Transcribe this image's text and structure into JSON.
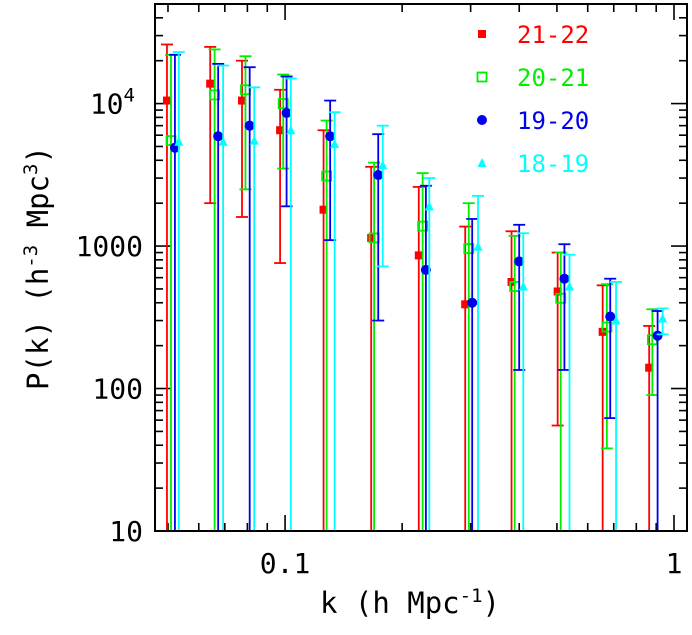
{
  "chart_data": {
    "type": "scatter",
    "xlabel": "k (h Mpc",
    "xlabel_sup": "-1",
    "xlabel_close": ")",
    "ylabel": "P(k) (h",
    "ylabel_sup1": "-3",
    "ylabel_mid": " Mpc",
    "ylabel_sup2": "3",
    "ylabel_close": ")",
    "x_scale": "log",
    "y_scale": "log",
    "xlim": [
      0.0463,
      1.08
    ],
    "ylim": [
      10,
      50000
    ],
    "x_ticks": [
      {
        "value": 0.1,
        "label": "0.1"
      },
      {
        "value": 1,
        "label": "1"
      }
    ],
    "y_ticks": [
      {
        "value": 10,
        "label": "10",
        "sup": ""
      },
      {
        "value": 100,
        "label": "100",
        "sup": ""
      },
      {
        "value": 1000,
        "label": "1000",
        "sup": ""
      },
      {
        "value": 10000,
        "label": "10",
        "sup": "4"
      }
    ],
    "legend_position": "top-right",
    "series": [
      {
        "name": "21-22",
        "color": "#ff0000",
        "marker": "filled-square",
        "points": [
          {
            "k": 0.0497,
            "p": 10500,
            "lo": 10,
            "hi": 26000
          },
          {
            "k": 0.0642,
            "p": 13800,
            "lo": 2000,
            "hi": 25000
          },
          {
            "k": 0.0775,
            "p": 10500,
            "lo": 1600,
            "hi": 20000
          },
          {
            "k": 0.0971,
            "p": 6500,
            "lo": 760,
            "hi": 12500
          },
          {
            "k": 0.1256,
            "p": 1800,
            "lo": 10,
            "hi": 6500
          },
          {
            "k": 0.1665,
            "p": 1140,
            "lo": 10,
            "hi": 3600
          },
          {
            "k": 0.2207,
            "p": 860,
            "lo": 10,
            "hi": 2600
          },
          {
            "k": 0.2905,
            "p": 390,
            "lo": 10,
            "hi": 1370
          },
          {
            "k": 0.3822,
            "p": 560,
            "lo": 10,
            "hi": 1270
          },
          {
            "k": 0.5022,
            "p": 480,
            "lo": 55,
            "hi": 900
          },
          {
            "k": 0.6555,
            "p": 250,
            "lo": 10,
            "hi": 530
          },
          {
            "k": 0.8633,
            "p": 140,
            "lo": 10,
            "hi": 275
          }
        ]
      },
      {
        "name": "20-21",
        "color": "#00ee00",
        "marker": "open-square",
        "points": [
          {
            "k": 0.0509,
            "p": 5500,
            "lo": 10,
            "hi": 22000
          },
          {
            "k": 0.0659,
            "p": 11500,
            "lo": 10,
            "hi": 24000
          },
          {
            "k": 0.0791,
            "p": 12500,
            "lo": 2500,
            "hi": 21500
          },
          {
            "k": 0.0989,
            "p": 10000,
            "lo": 3500,
            "hi": 16000
          },
          {
            "k": 0.1279,
            "p": 3100,
            "lo": 10,
            "hi": 7600
          },
          {
            "k": 0.1694,
            "p": 1140,
            "lo": 10,
            "hi": 3850
          },
          {
            "k": 0.2258,
            "p": 1380,
            "lo": 10,
            "hi": 3250
          },
          {
            "k": 0.2967,
            "p": 960,
            "lo": 10,
            "hi": 2000
          },
          {
            "k": 0.3893,
            "p": 520,
            "lo": 10,
            "hi": 1180
          },
          {
            "k": 0.5114,
            "p": 430,
            "lo": 10,
            "hi": 900
          },
          {
            "k": 0.6721,
            "p": 270,
            "lo": 38,
            "hi": 540
          },
          {
            "k": 0.8797,
            "p": 220,
            "lo": 90,
            "hi": 360
          }
        ]
      },
      {
        "name": "19-20",
        "color": "#0000ee",
        "marker": "filled-circle",
        "points": [
          {
            "k": 0.0521,
            "p": 4900,
            "lo": 10,
            "hi": 22000
          },
          {
            "k": 0.0673,
            "p": 5900,
            "lo": 10,
            "hi": 19000
          },
          {
            "k": 0.0811,
            "p": 7000,
            "lo": 10,
            "hi": 18000
          },
          {
            "k": 0.1009,
            "p": 8600,
            "lo": 1900,
            "hi": 15500
          },
          {
            "k": 0.1306,
            "p": 5900,
            "lo": 1100,
            "hi": 10500
          },
          {
            "k": 0.1736,
            "p": 3150,
            "lo": 300,
            "hi": 6100
          },
          {
            "k": 0.2302,
            "p": 680,
            "lo": 10,
            "hi": 2650
          },
          {
            "k": 0.3028,
            "p": 400,
            "lo": 10,
            "hi": 1550
          },
          {
            "k": 0.3999,
            "p": 780,
            "lo": 135,
            "hi": 1410
          },
          {
            "k": 0.5227,
            "p": 590,
            "lo": 135,
            "hi": 1030
          },
          {
            "k": 0.6856,
            "p": 320,
            "lo": 62,
            "hi": 590
          },
          {
            "k": 0.9074,
            "p": 235,
            "lo": 10,
            "hi": 350
          }
        ]
      },
      {
        "name": "18-19",
        "color": "#00ffff",
        "marker": "filled-triangle",
        "points": [
          {
            "k": 0.0533,
            "p": 5400,
            "lo": 10,
            "hi": 23000
          },
          {
            "k": 0.0693,
            "p": 5400,
            "lo": 10,
            "hi": 18500
          },
          {
            "k": 0.0833,
            "p": 5500,
            "lo": 10,
            "hi": 13000
          },
          {
            "k": 0.1035,
            "p": 6500,
            "lo": 10,
            "hi": 15000
          },
          {
            "k": 0.1341,
            "p": 5200,
            "lo": 10,
            "hi": 8700
          },
          {
            "k": 0.1783,
            "p": 3700,
            "lo": 720,
            "hi": 7000
          },
          {
            "k": 0.2349,
            "p": 1900,
            "lo": 10,
            "hi": 3000
          },
          {
            "k": 0.3134,
            "p": 990,
            "lo": 10,
            "hi": 2250
          },
          {
            "k": 0.4097,
            "p": 520,
            "lo": 10,
            "hi": 1230
          },
          {
            "k": 0.5386,
            "p": 520,
            "lo": 10,
            "hi": 870
          },
          {
            "k": 0.7096,
            "p": 300,
            "lo": 10,
            "hi": 560
          },
          {
            "k": 0.9349,
            "p": 310,
            "lo": 240,
            "hi": 365
          }
        ]
      }
    ]
  }
}
